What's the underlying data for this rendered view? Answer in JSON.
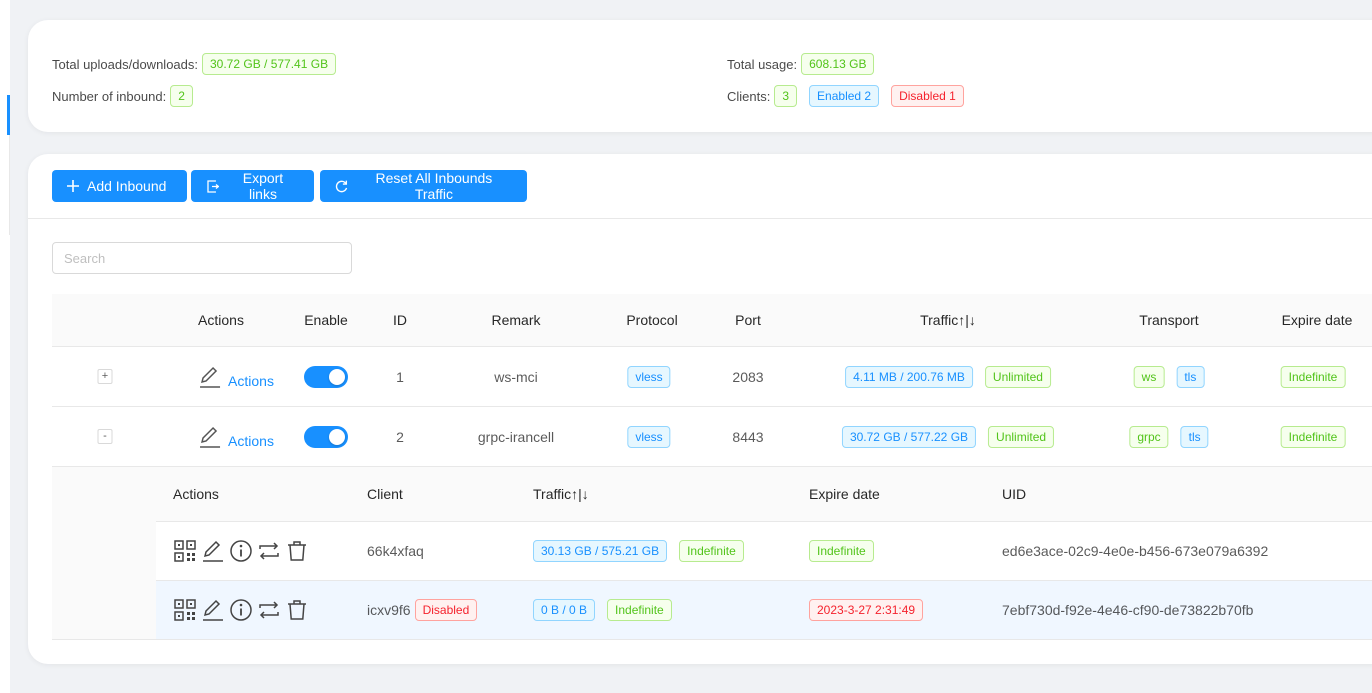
{
  "stats": {
    "uploads_label": "Total uploads/downloads:",
    "uploads_value": "30.72 GB / 577.41 GB",
    "inbound_label": "Number of inbound:",
    "inbound_value": "2",
    "usage_label": "Total usage:",
    "usage_value": "608.13 GB",
    "clients_label": "Clients:",
    "clients_value": "3",
    "enabled": "Enabled 2",
    "disabled": "Disabled 1"
  },
  "toolbar": {
    "add_inbound": "Add Inbound",
    "export_links": "Export links",
    "reset_traffic": "Reset All Inbounds Traffic"
  },
  "search": {
    "placeholder": "Search"
  },
  "table": {
    "headers": {
      "actions": "Actions",
      "enable": "Enable",
      "id": "ID",
      "remark": "Remark",
      "protocol": "Protocol",
      "port": "Port",
      "traffic": "Traffic↑|↓",
      "transport": "Transport",
      "expire": "Expire date"
    },
    "rows": [
      {
        "expand": "+",
        "actions": "Actions",
        "id": "1",
        "remark": "ws-mci",
        "protocol": "vless",
        "port": "2083",
        "traffic": "4.11 MB / 200.76 MB",
        "limit": "Unlimited",
        "transport": [
          "ws",
          "tls"
        ],
        "expire": "Indefinite"
      },
      {
        "expand": "-",
        "actions": "Actions",
        "id": "2",
        "remark": "grpc-irancell",
        "protocol": "vless",
        "port": "8443",
        "traffic": "30.72 GB / 577.22 GB",
        "limit": "Unlimited",
        "transport": [
          "grpc",
          "tls"
        ],
        "expire": "Indefinite"
      }
    ]
  },
  "clients": {
    "headers": {
      "actions": "Actions",
      "client": "Client",
      "traffic": "Traffic↑|↓",
      "expire": "Expire date",
      "uid": "UID"
    },
    "rows": [
      {
        "name": "66k4xfaq",
        "traffic": "30.13 GB / 575.21 GB",
        "traffic_expire": "Indefinite",
        "expire": "Indefinite",
        "uid": "ed6e3ace-02c9-4e0e-b456-673e079a6392"
      },
      {
        "name": "icxv9f6",
        "status": "Disabled",
        "traffic": "0 B / 0 B",
        "traffic_expire": "Indefinite",
        "expire": "2023-3-27 2:31:49",
        "uid": "7ebf730d-f92e-4e46-cf90-de73822b70fb"
      }
    ]
  },
  "colors": {
    "primary": "#1890ff",
    "success": "#52c41a",
    "danger": "#f5222d"
  }
}
